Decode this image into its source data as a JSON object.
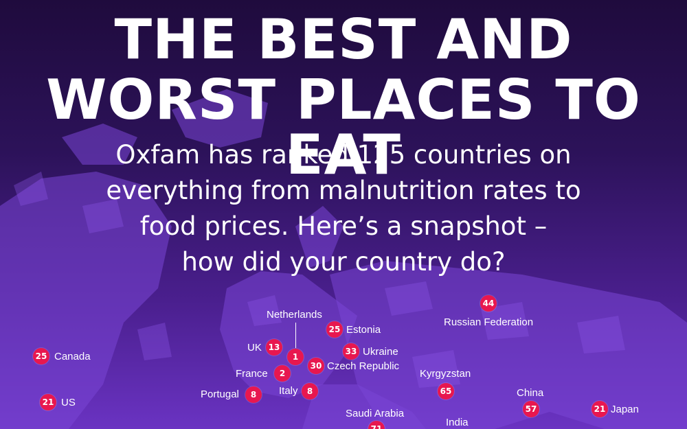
{
  "title": {
    "line1": "THE BEST AND",
    "line2": "WORST PLACES TO EAT"
  },
  "subtitle": {
    "line1": "Oxfam has ranked 125 countries on",
    "line2": "everything from malnutrition rates to",
    "line3": "food prices. Here’s a snapshot –",
    "line4": "how did your country do?"
  },
  "colors": {
    "background_top": "#1f0b3d",
    "background_bottom": "#6a33c2",
    "map_land": "#7a45d6",
    "marker": "#e8174f",
    "text": "#ffffff"
  },
  "countries": {
    "russia": {
      "name": "Russian Federation",
      "rank": "44"
    },
    "netherlands": {
      "name": "Netherlands",
      "rank": "1"
    },
    "estonia": {
      "name": "Estonia",
      "rank": "25"
    },
    "uk": {
      "name": "UK",
      "rank": "13"
    },
    "ukraine": {
      "name": "Ukraine",
      "rank": "33"
    },
    "canada": {
      "name": "Canada",
      "rank": "25"
    },
    "czech": {
      "name": "Czech Republic",
      "rank": "30"
    },
    "france": {
      "name": "France",
      "rank": "2"
    },
    "kyrgyzstan": {
      "name": "Kyrgyzstan",
      "rank": "65"
    },
    "portugal": {
      "name": "Portugal",
      "rank": "8"
    },
    "italy": {
      "name": "Italy",
      "rank": "8"
    },
    "china": {
      "name": "China",
      "rank": "57"
    },
    "us": {
      "name": "US",
      "rank": "21"
    },
    "japan": {
      "name": "Japan",
      "rank": "21"
    },
    "saudi": {
      "name": "Saudi Arabia",
      "rank": "71"
    },
    "india": {
      "name": "India",
      "rank": ""
    }
  }
}
